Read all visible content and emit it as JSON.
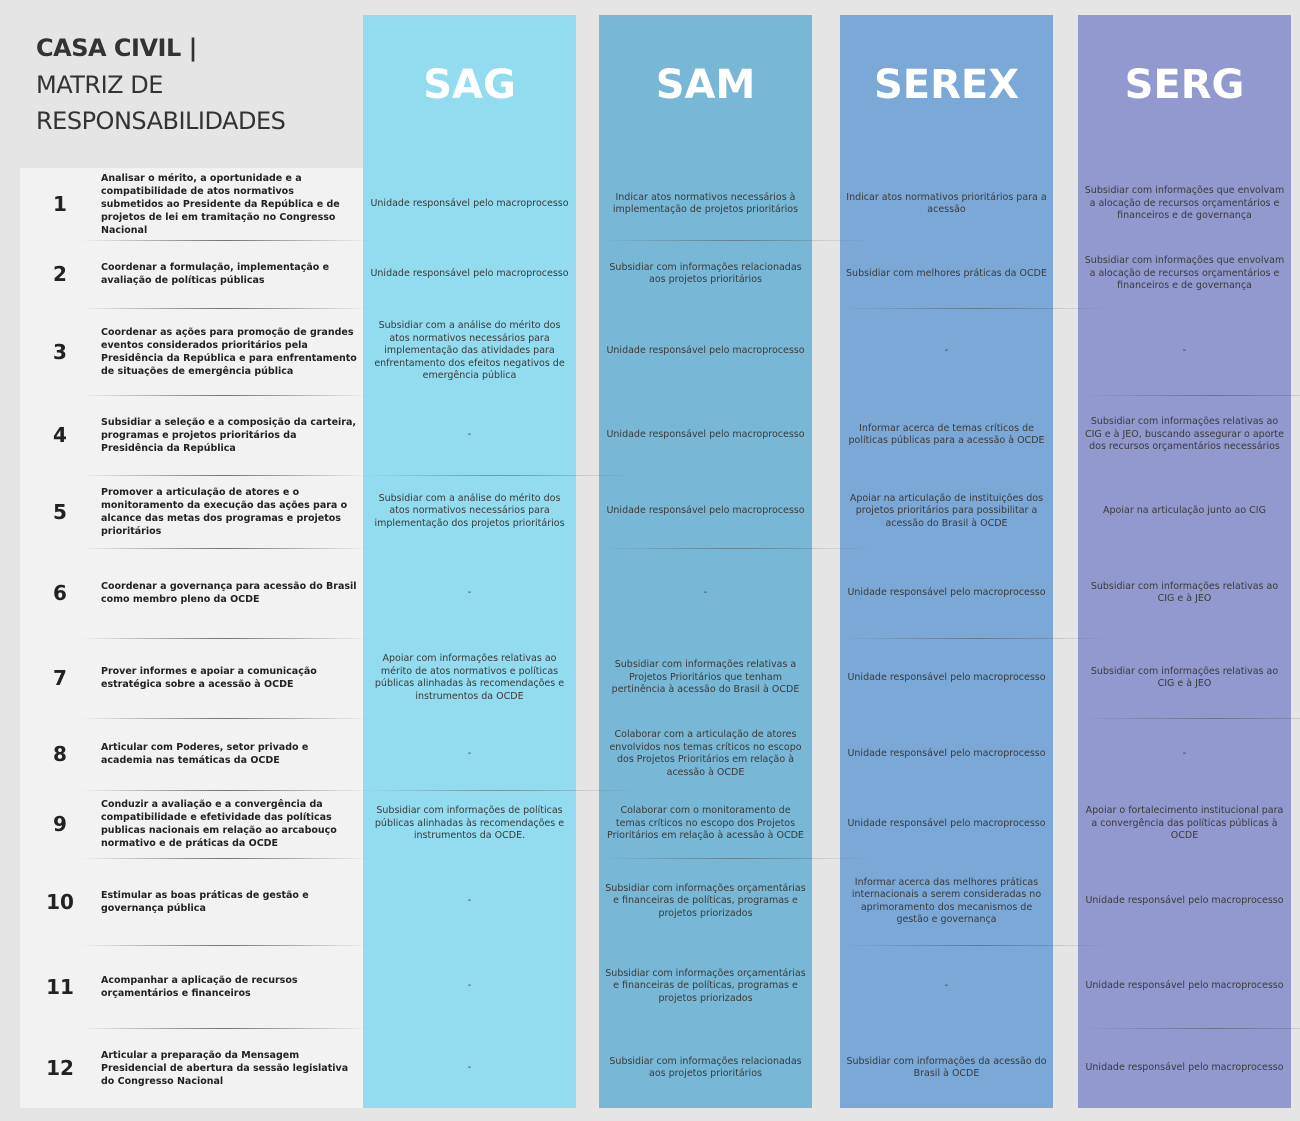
{
  "header": {
    "title": [
      "CASA CIVIL |",
      "MATRIZ DE",
      "RESPONSABILIDADES"
    ]
  },
  "columns": [
    "SAG",
    "SAM",
    "SEREX",
    "SERG"
  ],
  "rows": [
    {
      "number": 1,
      "description": "Analisar o mérito, a oportunidade e a compatibilidade de atos normativos submetidos ao Presidente da República e de projetos de lei em tramitação no Congresso Nacional",
      "cells": [
        "Unidade responsável pelo macroprocesso",
        "Indicar atos normativos necessários à implementação de projetos prioritários",
        "Indicar atos normativos prioritários para a acessão",
        "Subsidiar com informações que envolvam a alocação de recursos orçamentários e financeiros e de governança"
      ]
    },
    {
      "number": 2,
      "description": "Coordenar a formulação, implementação e avaliação de políticas públicas",
      "cells": [
        "Unidade responsável pelo macroprocesso",
        "Subsidiar com informações relacionadas aos projetos prioritários",
        "Subsidiar com melhores práticas da OCDE",
        "Subsidiar com informações que envolvam a alocação de recursos orçamentários e financeiros e de governança"
      ]
    },
    {
      "number": 3,
      "description": "Coordenar as ações para promoção de grandes eventos considerados prioritários pela Presidência da República e para enfrentamento de situações de emergência pública",
      "cells": [
        "Subsidiar com a análise do mérito dos atos normativos necessários para implementação das atividades para enfrentamento dos efeitos negativos de emergência pública",
        "Unidade responsável pelo macroprocesso",
        "-",
        "-"
      ]
    },
    {
      "number": 4,
      "description": "Subsidiar a seleção e a composição da carteira, programas e projetos prioritários da Presidência da República",
      "cells": [
        "-",
        "Unidade responsável pelo macroprocesso",
        "Informar acerca de temas críticos de políticas públicas para a acessão à OCDE",
        "Subsidiar com informações relativas ao CIG e à JEO, buscando assegurar o aporte dos recursos orçamentários necessários"
      ]
    },
    {
      "number": 5,
      "description": "Promover a articulação de atores e o monitoramento da execução das ações para o alcance das metas dos programas e projetos prioritários",
      "cells": [
        "Subsidiar com a análise do mérito dos atos normativos necessários para implementação dos projetos prioritários",
        "Unidade responsável pelo macroprocesso",
        "Apoiar na articulação de instituições dos projetos prioritários para possibilitar a acessão do Brasil à OCDE",
        "Apoiar na articulação junto ao CIG"
      ]
    },
    {
      "number": 6,
      "description": "Coordenar a governança para acessão do Brasil como membro pleno da OCDE",
      "cells": [
        "-",
        "-",
        "Unidade responsável pelo macroprocesso",
        "Subsidiar com informações relativas ao CIG e à JEO"
      ]
    },
    {
      "number": 7,
      "description": "Prover informes e apoiar a comunicação estratégica sobre a acessão à OCDE",
      "cells": [
        "Apoiar com informações relativas ao mérito de atos normativos e políticas públicas alinhadas às recomendações e instrumentos da OCDE",
        "Subsidiar com informações relativas a Projetos Prioritários que tenham pertinência à acessão do Brasil à OCDE",
        "Unidade responsável pelo macroprocesso",
        "Subsidiar com informações relativas ao CIG e à JEO"
      ]
    },
    {
      "number": 8,
      "description": "Articular com Poderes, setor privado e academia nas temáticas da OCDE",
      "cells": [
        "-",
        "Colaborar com a articulação de atores envolvidos nos temas críticos no escopo dos Projetos Prioritários em relação à acessão à OCDE",
        "Unidade responsável pelo macroprocesso",
        "-"
      ]
    },
    {
      "number": 9,
      "description": "Conduzir a avaliação e a convergência da compatibilidade e efetividade das políticas publicas nacionais em relação ao arcabouço normativo e de práticas da OCDE",
      "cells": [
        "Subsidiar com informações de políticas públicas alinhadas às recomendações e instrumentos da OCDE.",
        "Colaborar com o monitoramento de temas críticos no escopo dos Projetos Prioritários em relação à acessão à OCDE",
        "Unidade responsável pelo macroprocesso",
        "Apoiar o fortalecimento institucional para a convergência das políticas públicas à OCDE"
      ]
    },
    {
      "number": 10,
      "description": "Estimular as boas práticas de gestão e governança pública",
      "cells": [
        "-",
        "Subsidiar com informações orçamentárias e financeiras de políticas, programas e projetos priorizados",
        "Informar acerca das melhores práticas internacionais a serem consideradas no aprimoramento dos mecanismos de gestão e governança",
        "Unidade responsável pelo macroprocesso"
      ]
    },
    {
      "number": 11,
      "description": "Acompanhar a aplicação de recursos orçamentários e financeiros",
      "cells": [
        "-",
        "Subsidiar com informações orçamentárias e financeiras de políticas, programas e projetos priorizados",
        "-",
        "Unidade responsável pelo macroprocesso"
      ]
    },
    {
      "number": 12,
      "description": "Articular a preparação da Mensagem Presidencial de abertura da sessão legislativa do Congresso Nacional",
      "cells": [
        "-",
        "Subsidiar com informações relacionadas aos projetos prioritários",
        "Subsidiar com informações da acessão do Brasil à OCDE",
        "Unidade responsável pelo macroprocesso"
      ]
    }
  ]
}
